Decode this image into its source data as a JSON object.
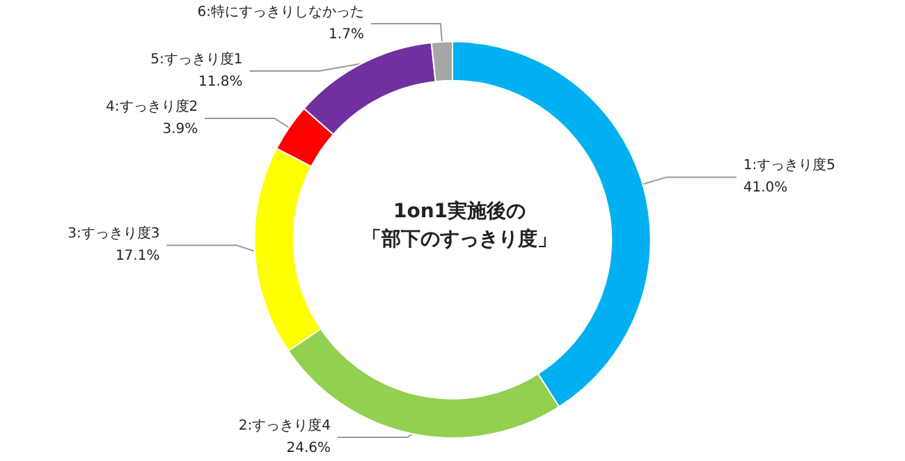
{
  "chart_data": {
    "type": "donut",
    "title": "1on1実施後の",
    "subtitle": "「部下のすっきり度」",
    "categories": [
      "1:すっきり度5",
      "2:すっきり度4",
      "3:すっきり度3",
      "4:すっきり度2",
      "5:すっきり度1",
      "6:特にすっきりしなかった"
    ],
    "values": [
      41.0,
      24.6,
      17.1,
      3.9,
      11.8,
      1.7
    ],
    "value_labels": [
      "41.0%",
      "24.6%",
      "17.1%",
      "3.9%",
      "11.8%",
      "1.7%"
    ],
    "colors": [
      "#00b0f0",
      "#92d050",
      "#ffff00",
      "#ff0000",
      "#7030a0",
      "#a6a6a6"
    ],
    "legend": false
  }
}
